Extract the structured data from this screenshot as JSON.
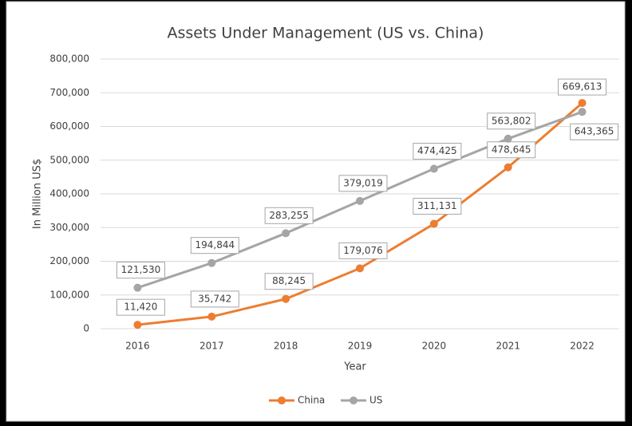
{
  "chart_data": {
    "type": "line",
    "title": "Assets Under Management (US vs. China)",
    "x_label": "Year",
    "y_label": "In Million US$",
    "categories": [
      "2016",
      "2017",
      "2018",
      "2019",
      "2020",
      "2021",
      "2022"
    ],
    "series": [
      {
        "name": "China",
        "color": "#ed7d31",
        "values": [
          11420,
          35742,
          88245,
          179076,
          311131,
          478645,
          669613
        ],
        "value_labels": [
          "11,420",
          "35,742",
          "88,245",
          "179,076",
          "311,131",
          "478,645",
          "669,613"
        ]
      },
      {
        "name": "US",
        "color": "#a5a5a5",
        "values": [
          121530,
          194844,
          283255,
          379019,
          474425,
          563802,
          643365
        ],
        "value_labels": [
          "121,530",
          "194,844",
          "283,255",
          "379,019",
          "474,425",
          "563,802",
          "643,365"
        ]
      }
    ],
    "ylim": [
      0,
      800000
    ],
    "yticks": [
      0,
      {
        "value": 100000,
        "label": "100,000"
      },
      {
        "value": 200000,
        "label": "200,000"
      },
      {
        "value": 300000,
        "label": "300,000"
      },
      {
        "value": 400000,
        "label": "400,000"
      },
      {
        "value": 500000,
        "label": "500,000"
      },
      {
        "value": 600000,
        "label": "600,000"
      },
      {
        "value": 700000,
        "label": "700,000"
      },
      {
        "value": 800000,
        "label": "800,000"
      }
    ],
    "grid": true,
    "legend": "bottom"
  }
}
